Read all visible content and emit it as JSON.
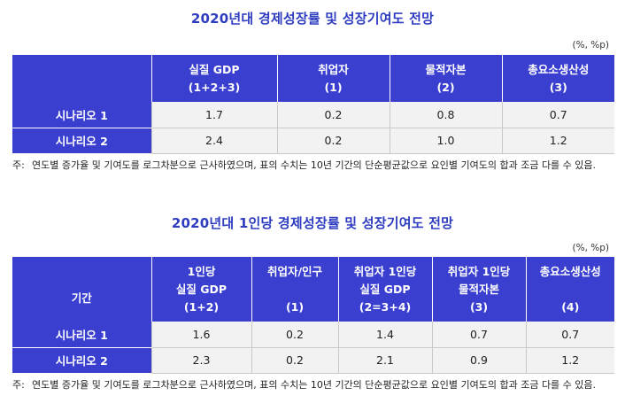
{
  "table1": {
    "title": "2020년대 경제성장률 및 성장기여도 전망",
    "unit": "(%, %p)",
    "columns": [
      {
        "line1": "",
        "line2": ""
      },
      {
        "line1": "실질 GDP",
        "line2": "(1+2+3)"
      },
      {
        "line1": "취업자",
        "line2": "(1)"
      },
      {
        "line1": "물적자본",
        "line2": "(2)"
      },
      {
        "line1": "총요소생산성",
        "line2": "(3)"
      }
    ],
    "rows": [
      {
        "label": "시나리오 1",
        "values": [
          "1.7",
          "0.2",
          "0.8",
          "0.7"
        ]
      },
      {
        "label": "시나리오 2",
        "values": [
          "2.4",
          "0.2",
          "1.0",
          "1.2"
        ]
      }
    ],
    "note_mark": "주:",
    "note": "연도별 증가율 및 기여도를 로그차분으로 근사하였으며, 표의 수치는 10년 기간의 단순평균값으로 요인별 기여도의 합과 조금 다를 수 있음."
  },
  "table2": {
    "title": "2020년대 1인당 경제성장률 및 성장기여도 전망",
    "unit": "(%, %p)",
    "columns": [
      {
        "line1": "",
        "line2": "기간",
        "line3": ""
      },
      {
        "line1": "1인당",
        "line2": "실질 GDP",
        "line3": "(1+2)"
      },
      {
        "line1": "취업자/인구",
        "line2": "",
        "line3": "(1)"
      },
      {
        "line1": "취업자 1인당",
        "line2": "실질 GDP",
        "line3": "(2=3+4)"
      },
      {
        "line1": "취업자 1인당",
        "line2": "물적자본",
        "line3": "(3)"
      },
      {
        "line1": "총요소생산성",
        "line2": "",
        "line3": "(4)"
      }
    ],
    "rows": [
      {
        "label": "시나리오 1",
        "values": [
          "1.6",
          "0.2",
          "1.4",
          "0.7",
          "0.7"
        ]
      },
      {
        "label": "시나리오 2",
        "values": [
          "2.3",
          "0.2",
          "2.1",
          "0.9",
          "1.2"
        ]
      }
    ],
    "note_mark": "주:",
    "note": "연도별 증가율 및 기여도를 로그차분으로 근사하였으며, 표의 수치는 10년 기간의 단순평균값으로 요인별 기여도의 합과 조금 다를 수 있음."
  },
  "colors": {
    "header_bg": "#3a3fd0",
    "title": "#2e3cc0",
    "cell_bg": "#f2f2f2"
  }
}
